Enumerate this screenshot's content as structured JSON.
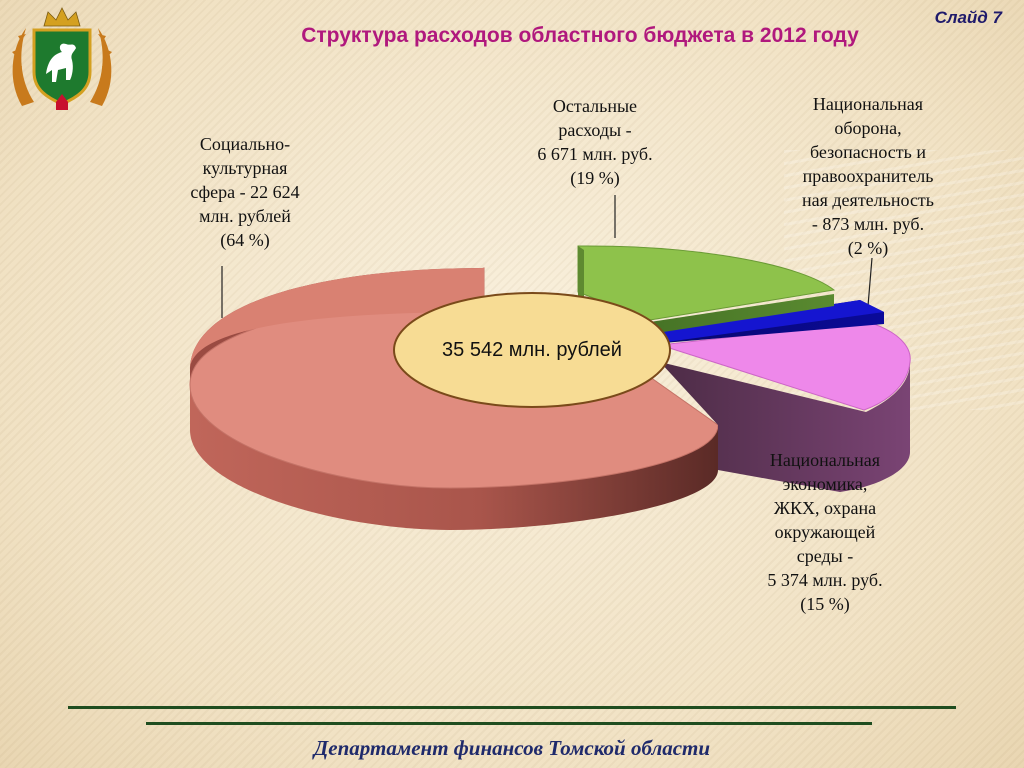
{
  "slide": {
    "number_label": "Слайд 7",
    "title": "Структура расходов областного бюджета в 2012 году",
    "footer": "Департамент финансов Томской области"
  },
  "chart_data": {
    "type": "pie",
    "title": "Структура расходов областного бюджета в 2012 году",
    "total_label": "35 542 млн. рублей",
    "unit": "млн. руб.",
    "series": [
      {
        "label": "Социально-культурная сфера",
        "value": 22624,
        "percent": 64,
        "color": "#de8a7b",
        "text": "Социально-\nкультурная\nсфера - 22 624\nмлн. рублей\n(64 %)"
      },
      {
        "label": "Остальные расходы",
        "value": 6671,
        "percent": 19,
        "color": "#8ec24b",
        "text": "Остальные\nрасходы -\n6 671 млн. руб.\n(19 %)"
      },
      {
        "label": "Национальная оборона, безопасность и правоохранительная деятельность",
        "value": 873,
        "percent": 2,
        "color": "#1010c8",
        "text": "Национальная\nоборона,\nбезопасность и\nправоохранитель\nная деятельность\n- 873 млн. руб.\n(2 %)"
      },
      {
        "label": "Национальная экономика, ЖКХ, охрана окружающей среды",
        "value": 5374,
        "percent": 15,
        "color": "#ee88ea",
        "text": "Национальная\nэкономика,\nЖКХ, охрана\nокружающей\nсреды -\n5 374 млн. руб.\n(15 %)"
      }
    ]
  }
}
